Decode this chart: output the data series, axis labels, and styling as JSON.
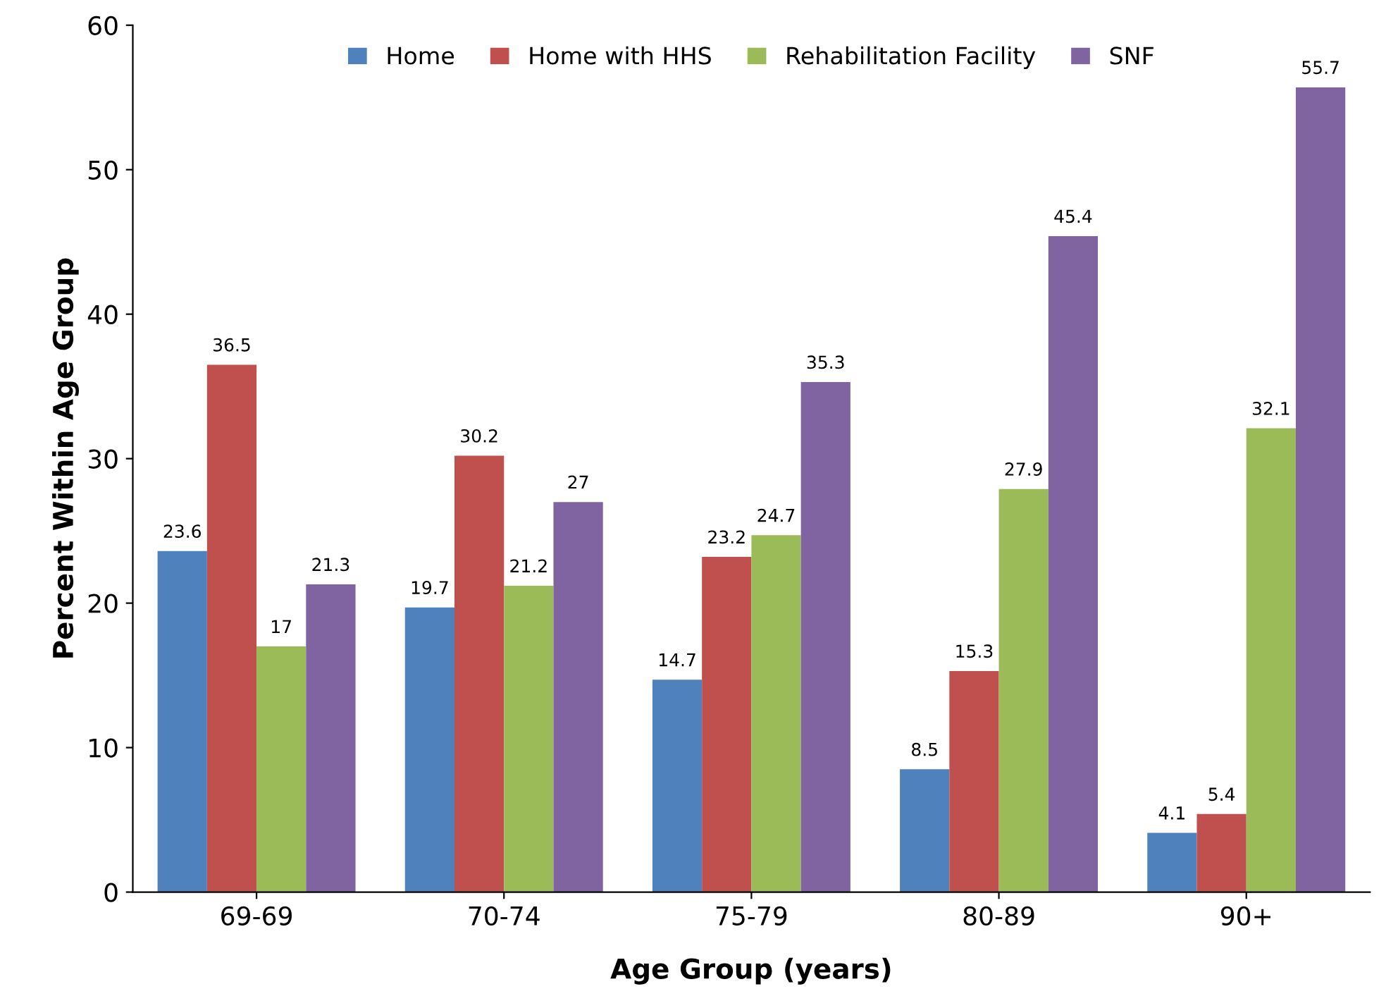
{
  "chart_data": {
    "type": "bar",
    "xlabel": "Age Group (years)",
    "ylabel": "Percent Within Age Group",
    "categories": [
      "69-69",
      "70-74",
      "75-79",
      "80-89",
      "90+"
    ],
    "series": [
      {
        "name": "Home",
        "color": "#4f81bd",
        "values": [
          23.6,
          19.7,
          14.7,
          8.5,
          4.1
        ]
      },
      {
        "name": "Home with HHS",
        "color": "#c0504d",
        "values": [
          36.5,
          30.2,
          23.2,
          15.3,
          5.4
        ]
      },
      {
        "name": "Rehabilitation Facility",
        "color": "#9bbb59",
        "values": [
          17,
          21.2,
          24.7,
          27.9,
          32.1
        ]
      },
      {
        "name": "SNF",
        "color": "#8064a2",
        "values": [
          21.3,
          27,
          35.3,
          45.4,
          55.7
        ]
      }
    ],
    "ylim": [
      0,
      60
    ],
    "yticks": [
      0,
      10,
      20,
      30,
      40,
      50,
      60
    ],
    "data_labels": true,
    "legend": "top",
    "grid": false
  }
}
